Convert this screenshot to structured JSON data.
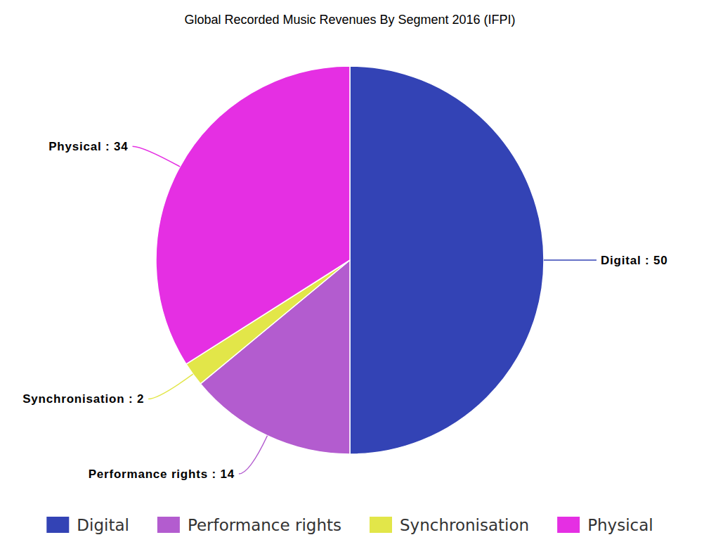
{
  "chart_data": {
    "type": "pie",
    "title": "Global Recorded Music Revenues By Segment 2016 (IFPI)",
    "categories": [
      "Digital",
      "Performance rights",
      "Synchronisation",
      "Physical"
    ],
    "values": [
      50,
      14,
      2,
      34
    ],
    "colors": [
      "#3343b5",
      "#b35ccf",
      "#e2e649",
      "#e52fe3"
    ],
    "data_labels": true,
    "value_labels": [
      "Digital : 50",
      "Performance rights : 14",
      "Synchronisation : 2",
      "Physical : 34"
    ],
    "legend": "bottom"
  }
}
